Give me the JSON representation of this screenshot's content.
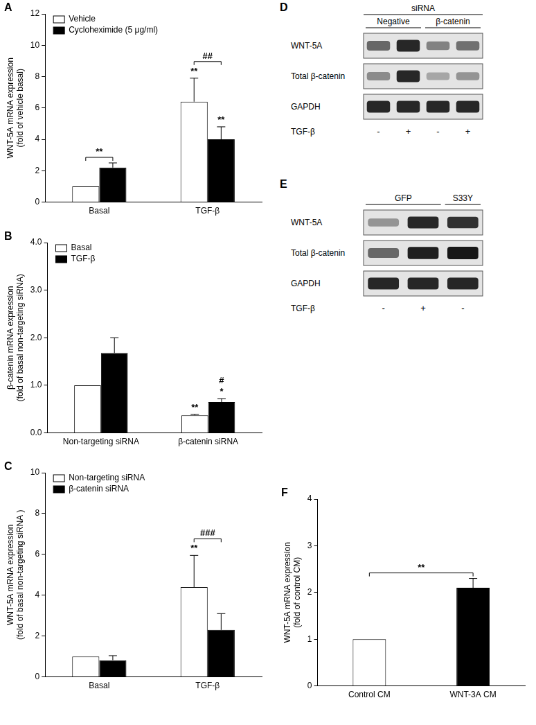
{
  "chart_data": [
    {
      "panel": "A",
      "type": "bar",
      "categories": [
        "Basal",
        "TGF-β"
      ],
      "y_label": [
        "WNT-5A mRNA expression",
        "(fold of vehicle basal)"
      ],
      "ylim": [
        0,
        12
      ],
      "yticks": [
        0,
        2,
        4,
        6,
        8,
        10,
        12
      ],
      "grid": false,
      "legend": "upper left",
      "series": [
        {
          "name": "Vehicle",
          "color": "#ffffff",
          "values": [
            1,
            6.4
          ],
          "errors": [
            0,
            1.5
          ]
        },
        {
          "name": "Cycloheximide (5 μg/ml)",
          "color": "#000000",
          "values": [
            2.2,
            4.0
          ],
          "errors": [
            0.3,
            0.8
          ]
        }
      ],
      "annotations": [
        {
          "text": "**",
          "bars": [
            [
              0,
              0
            ],
            [
              0,
              1
            ]
          ]
        },
        {
          "text": "**",
          "bars": [
            [
              1,
              0
            ]
          ]
        },
        {
          "text": "**",
          "bars": [
            [
              1,
              1
            ]
          ]
        },
        {
          "text": "##",
          "bars": [
            [
              1,
              0
            ],
            [
              1,
              1
            ]
          ]
        }
      ]
    },
    {
      "panel": "B",
      "type": "bar",
      "categories": [
        "Non-targeting siRNA",
        "β-catenin siRNA"
      ],
      "y_label": [
        "β-catenin mRNA expression",
        "(fold of basal non-targeting siRNA)"
      ],
      "ylim": [
        0,
        4
      ],
      "yticks": [
        {
          "value": 0,
          "label": "0.0"
        },
        {
          "value": 1,
          "label": "1.0"
        },
        {
          "value": 2,
          "label": "2.0"
        },
        {
          "value": 3,
          "label": "3.0"
        },
        {
          "value": 4,
          "label": "4.0"
        }
      ],
      "grid": false,
      "legend": "upper left",
      "series": [
        {
          "name": "Basal",
          "color": "#ffffff",
          "values": [
            1,
            0.37
          ],
          "errors": [
            0,
            0.02
          ]
        },
        {
          "name": "TGF-β",
          "color": "#000000",
          "values": [
            1.68,
            0.65
          ],
          "errors": [
            0.32,
            0.07
          ]
        }
      ],
      "annotations": [
        {
          "text": "**",
          "bars": [
            [
              1,
              0
            ]
          ]
        },
        {
          "text": "*",
          "bars": [
            [
              1,
              1
            ]
          ]
        },
        {
          "text": "#",
          "bars": [
            [
              1,
              1
            ]
          ]
        }
      ]
    },
    {
      "panel": "C",
      "type": "bar",
      "categories": [
        "Basal",
        "TGF-β"
      ],
      "y_label": [
        "WNT-5A mRNA expression",
        "(fold of basal non-targeting siRNA )"
      ],
      "ylim": [
        0,
        10
      ],
      "yticks": [
        0,
        2,
        4,
        6,
        8,
        10
      ],
      "grid": false,
      "legend": "upper left",
      "series": [
        {
          "name": "Non-targeting siRNA",
          "color": "#ffffff",
          "values": [
            1,
            4.4
          ],
          "errors": [
            0,
            1.55
          ]
        },
        {
          "name": "β-catenin siRNA",
          "color": "#000000",
          "values": [
            0.82,
            2.3
          ],
          "errors": [
            0.22,
            0.8
          ]
        }
      ],
      "annotations": [
        {
          "text": "**",
          "bars": [
            [
              1,
              0
            ]
          ]
        },
        {
          "text": "###",
          "bars": [
            [
              1,
              0
            ],
            [
              1,
              1
            ]
          ]
        }
      ]
    },
    {
      "panel": "F",
      "type": "bar",
      "categories": [
        "Control CM",
        "WNT-3A CM"
      ],
      "y_label": [
        "WNT-5A mRNA expression",
        "(fold of control CM)"
      ],
      "ylim": [
        0,
        4
      ],
      "yticks": [
        0,
        1,
        2,
        3,
        4
      ],
      "grid": false,
      "values": [
        1,
        2.1
      ],
      "colors": [
        "#ffffff",
        "#000000"
      ],
      "errors": [
        0,
        0.2
      ],
      "annotations": [
        {
          "text": "**",
          "bars": [
            [
              0,
              0
            ],
            [
              1,
              0
            ]
          ]
        }
      ]
    }
  ],
  "blots": [
    {
      "panel": "D",
      "header": "siRNA",
      "groups": [
        {
          "label": "Negative",
          "lanes": 2
        },
        {
          "label": "β-catenin",
          "lanes": 2
        }
      ],
      "rows": [
        {
          "label": "WNT-5A",
          "intensity": [
            0.55,
            0.9,
            0.4,
            0.5
          ]
        },
        {
          "label": "Total β-catenin",
          "intensity": [
            0.35,
            0.9,
            0.2,
            0.3
          ]
        },
        {
          "label": "GAPDH",
          "intensity": [
            0.9,
            0.9,
            0.9,
            0.9
          ]
        }
      ],
      "treatment": {
        "label": "TGF-β",
        "lanes": [
          "-",
          "+",
          "-",
          "+"
        ]
      }
    },
    {
      "panel": "E",
      "groups": [
        {
          "label": "GFP",
          "lanes": 2
        },
        {
          "label": "S33Y",
          "lanes": 1
        }
      ],
      "rows": [
        {
          "label": "WNT-5A",
          "intensity": [
            0.3,
            0.9,
            0.85
          ]
        },
        {
          "label": "Total β-catenin",
          "intensity": [
            0.55,
            0.95,
            1.0
          ]
        },
        {
          "label": "GAPDH",
          "intensity": [
            0.9,
            0.9,
            0.9
          ]
        }
      ],
      "treatment": {
        "label": "TGF-β",
        "lanes": [
          "-",
          "+",
          "-"
        ]
      }
    }
  ]
}
